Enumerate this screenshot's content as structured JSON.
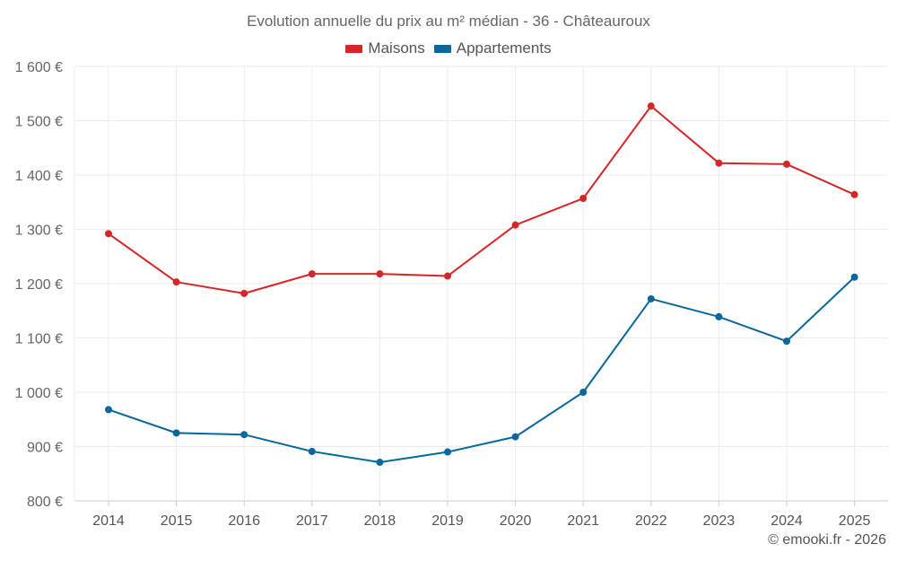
{
  "chart_data": {
    "type": "line",
    "title": "Evolution annuelle du prix au m² médian - 36 - Châteauroux",
    "categories": [
      "2014",
      "2015",
      "2016",
      "2017",
      "2018",
      "2019",
      "2020",
      "2021",
      "2022",
      "2023",
      "2024",
      "2025"
    ],
    "ylim": [
      800,
      1600
    ],
    "yticks": [
      800,
      900,
      1000,
      1100,
      1200,
      1300,
      1400,
      1500,
      1600
    ],
    "ytick_labels": [
      "800 €",
      "900 €",
      "1 000 €",
      "1 100 €",
      "1 200 €",
      "1 300 €",
      "1 400 €",
      "1 500 €",
      "1 600 €"
    ],
    "grid": true,
    "legend_position": "top-center",
    "series": [
      {
        "name": "Maisons",
        "color": "#d62728",
        "values": [
          1292,
          1203,
          1182,
          1218,
          1218,
          1214,
          1308,
          1357,
          1527,
          1422,
          1420,
          1364
        ]
      },
      {
        "name": "Appartements",
        "color": "#08679c",
        "values": [
          968,
          925,
          922,
          891,
          871,
          890,
          918,
          1000,
          1172,
          1139,
          1094,
          1212
        ]
      }
    ]
  },
  "credit": "© emooki.fr - 2026"
}
